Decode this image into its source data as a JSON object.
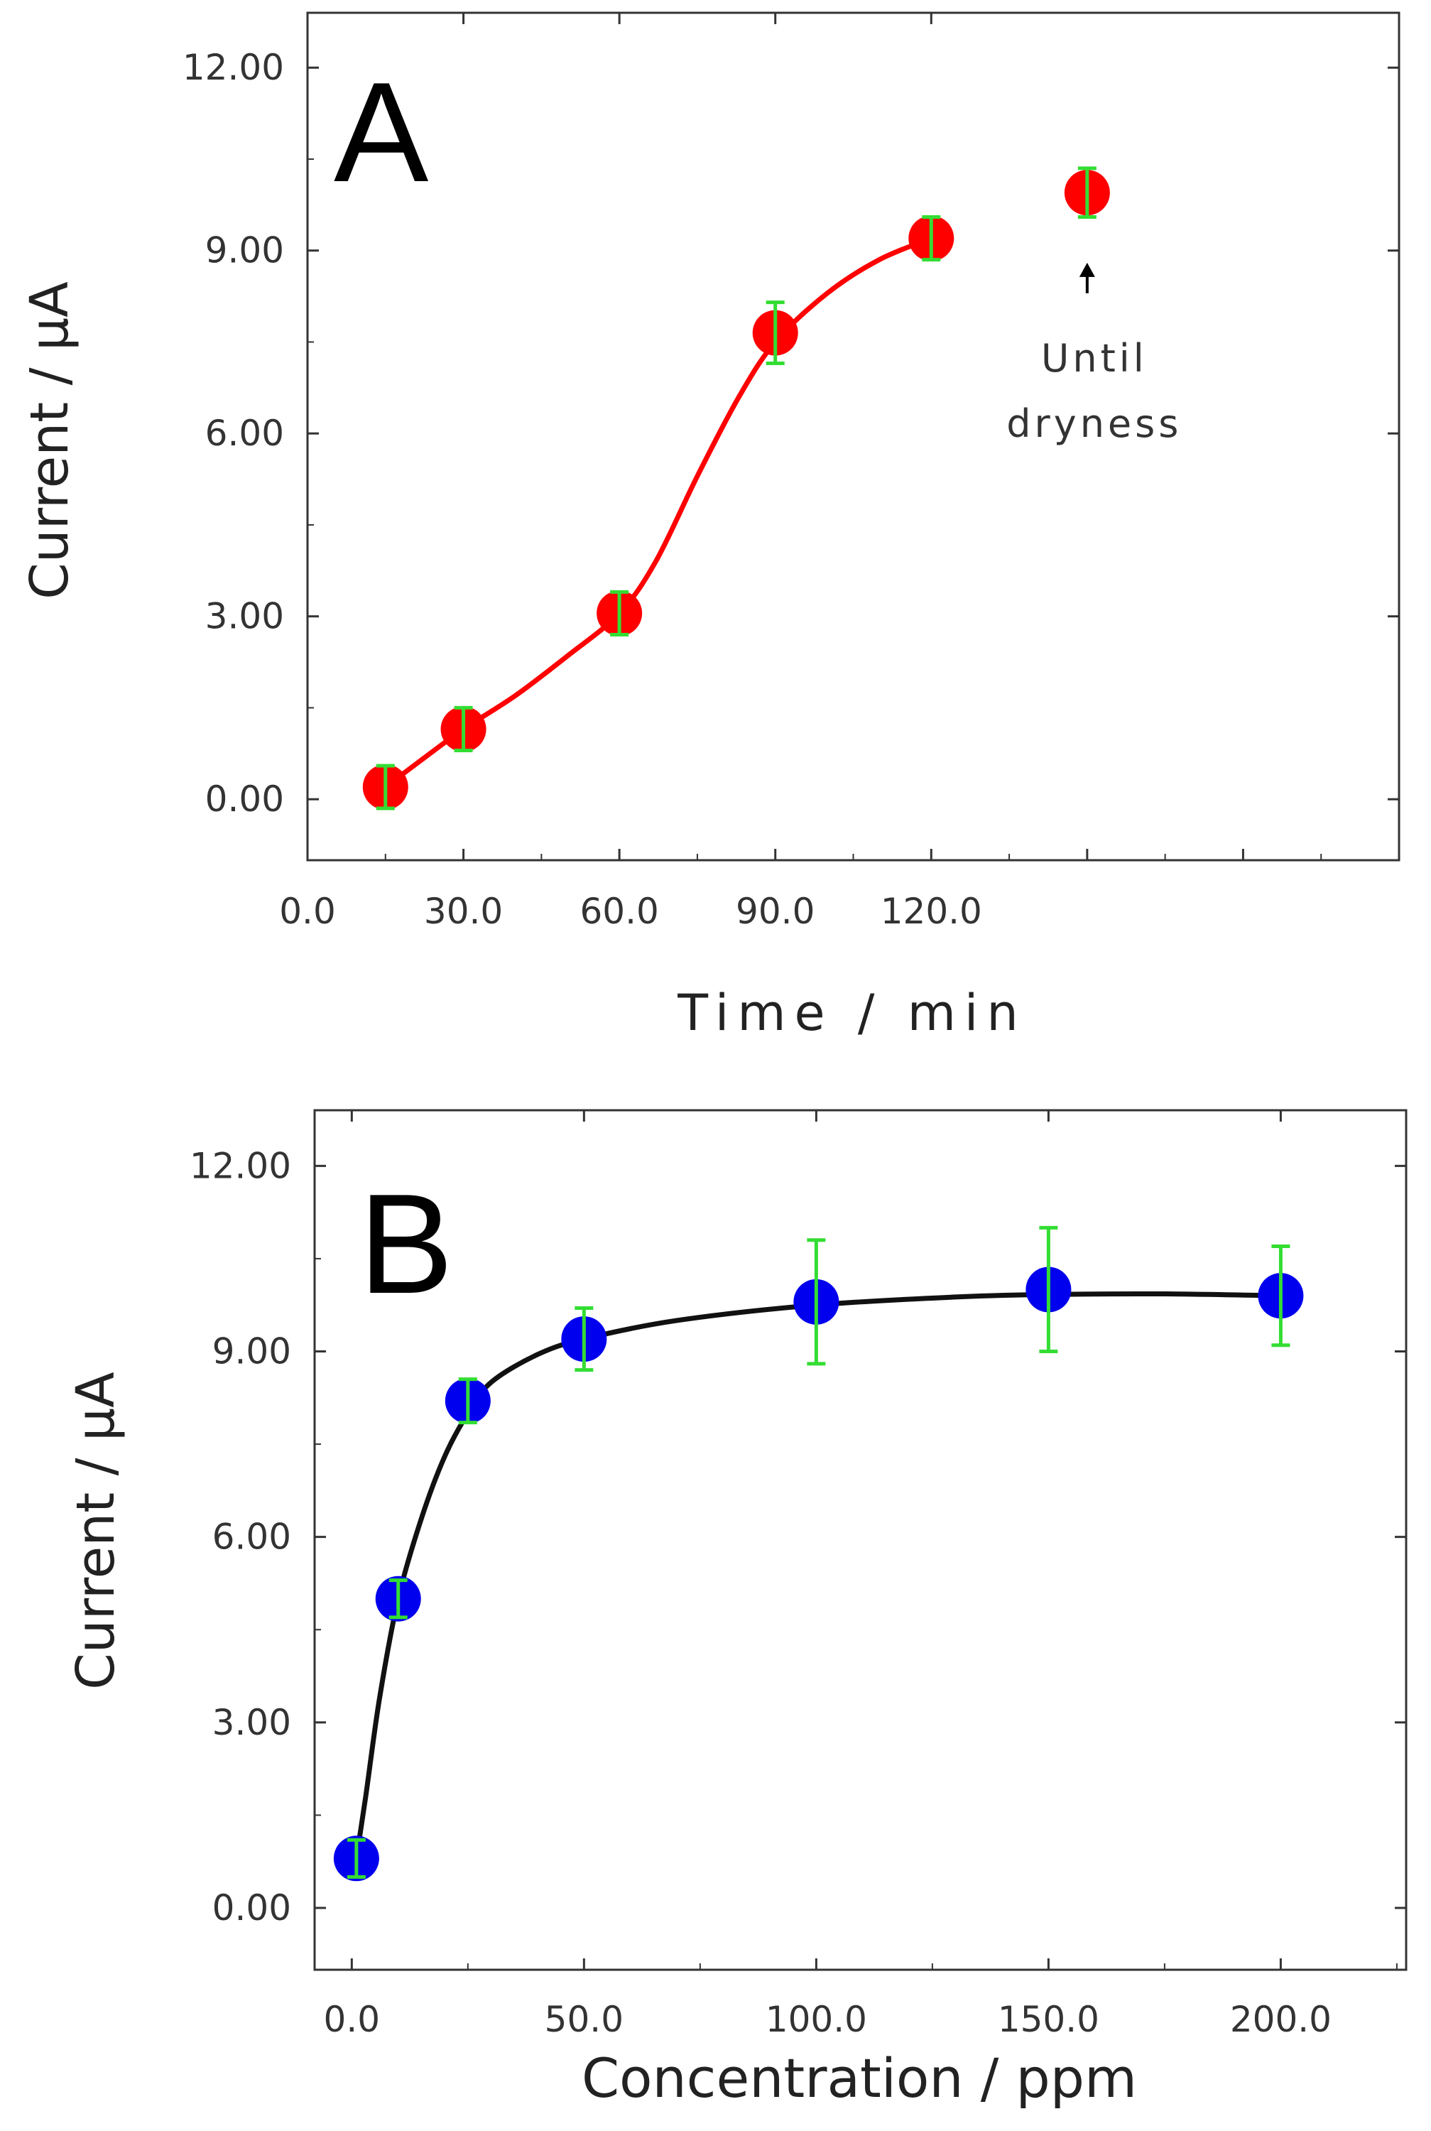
{
  "chart_data": [
    {
      "panel": "A",
      "type": "line",
      "xlabel": "Time / min",
      "ylabel": "Current / μA",
      "xlim": [
        0,
        210
      ],
      "ylim": [
        -1,
        12.9
      ],
      "xticks": [
        0,
        30,
        60,
        90,
        120
      ],
      "xtick_labels": [
        "0.0",
        "30.0",
        "60.0",
        "90.0",
        "120.0"
      ],
      "yticks": [
        0,
        3,
        6,
        9,
        12
      ],
      "ytick_labels": [
        "0.00",
        "3.00",
        "6.00",
        "9.00",
        "12.00"
      ],
      "marker_color": "#ff0000",
      "errorbar_color": "#33dd33",
      "line_color": "#ff0000",
      "points": [
        {
          "x": 15,
          "y": 0.2,
          "err": 0.35
        },
        {
          "x": 30,
          "y": 1.15,
          "err": 0.35
        },
        {
          "x": 60,
          "y": 3.05,
          "err": 0.35
        },
        {
          "x": 90,
          "y": 7.65,
          "err": 0.5
        },
        {
          "x": 120,
          "y": 9.2,
          "err": 0.35
        },
        {
          "x": 150,
          "y": 9.95,
          "err": 0.4
        }
      ],
      "fit_curve": [
        [
          15,
          0.2
        ],
        [
          22,
          0.65
        ],
        [
          30,
          1.15
        ],
        [
          40,
          1.7
        ],
        [
          50,
          2.35
        ],
        [
          60,
          3.05
        ],
        [
          67,
          3.9
        ],
        [
          75,
          5.3
        ],
        [
          83,
          6.6
        ],
        [
          90,
          7.5
        ],
        [
          100,
          8.3
        ],
        [
          110,
          8.85
        ],
        [
          120,
          9.2
        ]
      ],
      "annotation": {
        "lines": [
          "Until",
          "dryness"
        ],
        "x": 150,
        "arrow_to_y": 8.8,
        "arrow_from_y": 8.3
      }
    },
    {
      "panel": "B",
      "type": "line",
      "xlabel": "Concentration / ppm",
      "ylabel": "Current / μA",
      "xlim": [
        -8,
        227
      ],
      "ylim": [
        -1,
        12.9
      ],
      "xticks": [
        0,
        50,
        100,
        150,
        200
      ],
      "xtick_labels": [
        "0.0",
        "50.0",
        "100.0",
        "150.0",
        "200.0"
      ],
      "yticks": [
        0,
        3,
        6,
        9,
        12
      ],
      "ytick_labels": [
        "0.00",
        "3.00",
        "6.00",
        "9.00",
        "12.00"
      ],
      "marker_color": "#0000ee",
      "errorbar_color": "#33dd33",
      "line_color": "#111111",
      "points": [
        {
          "x": 1,
          "y": 0.8,
          "err": 0.3
        },
        {
          "x": 10,
          "y": 5.0,
          "err": 0.3
        },
        {
          "x": 25,
          "y": 8.2,
          "err": 0.35
        },
        {
          "x": 50,
          "y": 9.2,
          "err": 0.5
        },
        {
          "x": 100,
          "y": 9.8,
          "err": 1.0
        },
        {
          "x": 150,
          "y": 10.0,
          "err": 1.0
        },
        {
          "x": 200,
          "y": 9.9,
          "err": 0.8
        }
      ],
      "fit_curve": [
        [
          1,
          0.8
        ],
        [
          3,
          1.8
        ],
        [
          6,
          3.4
        ],
        [
          10,
          5.0
        ],
        [
          15,
          6.3
        ],
        [
          20,
          7.3
        ],
        [
          25,
          8.0
        ],
        [
          30,
          8.5
        ],
        [
          40,
          8.95
        ],
        [
          50,
          9.2
        ],
        [
          70,
          9.5
        ],
        [
          100,
          9.75
        ],
        [
          130,
          9.88
        ],
        [
          150,
          9.92
        ],
        [
          175,
          9.93
        ],
        [
          200,
          9.9
        ]
      ]
    }
  ]
}
